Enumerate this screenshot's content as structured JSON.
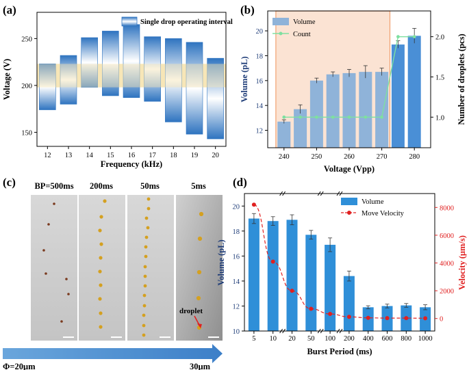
{
  "panels": {
    "a": {
      "label": "(a)"
    },
    "b": {
      "label": "(b)"
    },
    "c": {
      "label": "(c)"
    },
    "d": {
      "label": "(d)"
    }
  },
  "panel_c": {
    "labels": [
      "BP=500ms",
      "200ms",
      "50ms",
      "5ms"
    ],
    "droplet_label": "droplet",
    "phi_start": "Φ=20μm",
    "phi_end": "30μm"
  },
  "colors": {
    "bar_blue": "#2f74c0",
    "bar_light": "#8fb3d9",
    "band_yellow": "#f6e4b4",
    "count_green": "#7ee0a0",
    "orange_region": "#fbe3d3",
    "orange_border": "#f0a070",
    "velocity_red": "#e02020",
    "arrow_blue": "#4c8ed0",
    "photo_bg": "#cfcfcf"
  },
  "chart_data": [
    {
      "id": "a",
      "type": "floating-bar",
      "title": "",
      "xlabel": "Frequency (kHz)",
      "ylabel": "Voltage (V)",
      "categories": [
        "12",
        "13",
        "14",
        "15",
        "16",
        "17",
        "18",
        "19",
        "20"
      ],
      "low": [
        174,
        180,
        198,
        189,
        187,
        183,
        161,
        148,
        143
      ],
      "high": [
        223,
        232,
        251,
        258,
        265,
        252,
        250,
        246,
        229
      ],
      "band": [
        198,
        223
      ],
      "ylim": [
        135,
        278
      ],
      "yticks": [
        150,
        200,
        250
      ],
      "legend": "Single drop operating interval"
    },
    {
      "id": "b",
      "type": "bar+line",
      "xlabel": "Voltage (Vpp)",
      "ylabel": "Volume (pL)",
      "y2label": "Number of droplets (pcs)",
      "x": [
        240,
        245,
        250,
        255,
        260,
        265,
        270,
        275,
        280
      ],
      "volume": [
        12.7,
        13.7,
        16.0,
        16.5,
        16.6,
        16.7,
        16.7,
        18.9,
        19.6
      ],
      "volume_err": [
        0.15,
        0.35,
        0.2,
        0.2,
        0.3,
        0.5,
        0.3,
        0.3,
        0.6
      ],
      "count": [
        1,
        1,
        1,
        1,
        1,
        1,
        1,
        2,
        2
      ],
      "xlim": [
        235,
        285
      ],
      "xticks": [
        240,
        250,
        260,
        270,
        280
      ],
      "ylim": [
        10.6,
        21.6
      ],
      "yticks": [
        12,
        14,
        16,
        18,
        20
      ],
      "y2lim": [
        0.62,
        2.32
      ],
      "y2ticks": [
        "1.0",
        "1.5",
        "2.0"
      ],
      "region": [
        237.5,
        272.5
      ],
      "legend": [
        "Volume",
        "Count"
      ]
    },
    {
      "id": "d",
      "type": "bar+line",
      "xlabel": "Burst Period (ms)",
      "ylabel": "Volume (pL)",
      "y2label": "Velocity (μm/s)",
      "categories": [
        "5",
        "10",
        "20",
        "50",
        "100",
        "200",
        "400",
        "600",
        "800",
        "1000"
      ],
      "volume": [
        19.0,
        18.8,
        18.9,
        17.7,
        16.9,
        14.4,
        11.9,
        12.0,
        12.05,
        11.9
      ],
      "volume_err": [
        0.4,
        0.35,
        0.4,
        0.35,
        0.55,
        0.4,
        0.12,
        0.15,
        0.15,
        0.2
      ],
      "velocity": [
        8200,
        4100,
        2000,
        700,
        330,
        120,
        50,
        30,
        30,
        20
      ],
      "ylim": [
        10,
        21
      ],
      "yticks": [
        10,
        12,
        14,
        16,
        18,
        20
      ],
      "y2lim": [
        -900,
        9000
      ],
      "y2ticks": [
        0,
        2000,
        4000,
        6000,
        8000
      ],
      "legend": [
        "Volume",
        "Move Velocity"
      ]
    }
  ]
}
